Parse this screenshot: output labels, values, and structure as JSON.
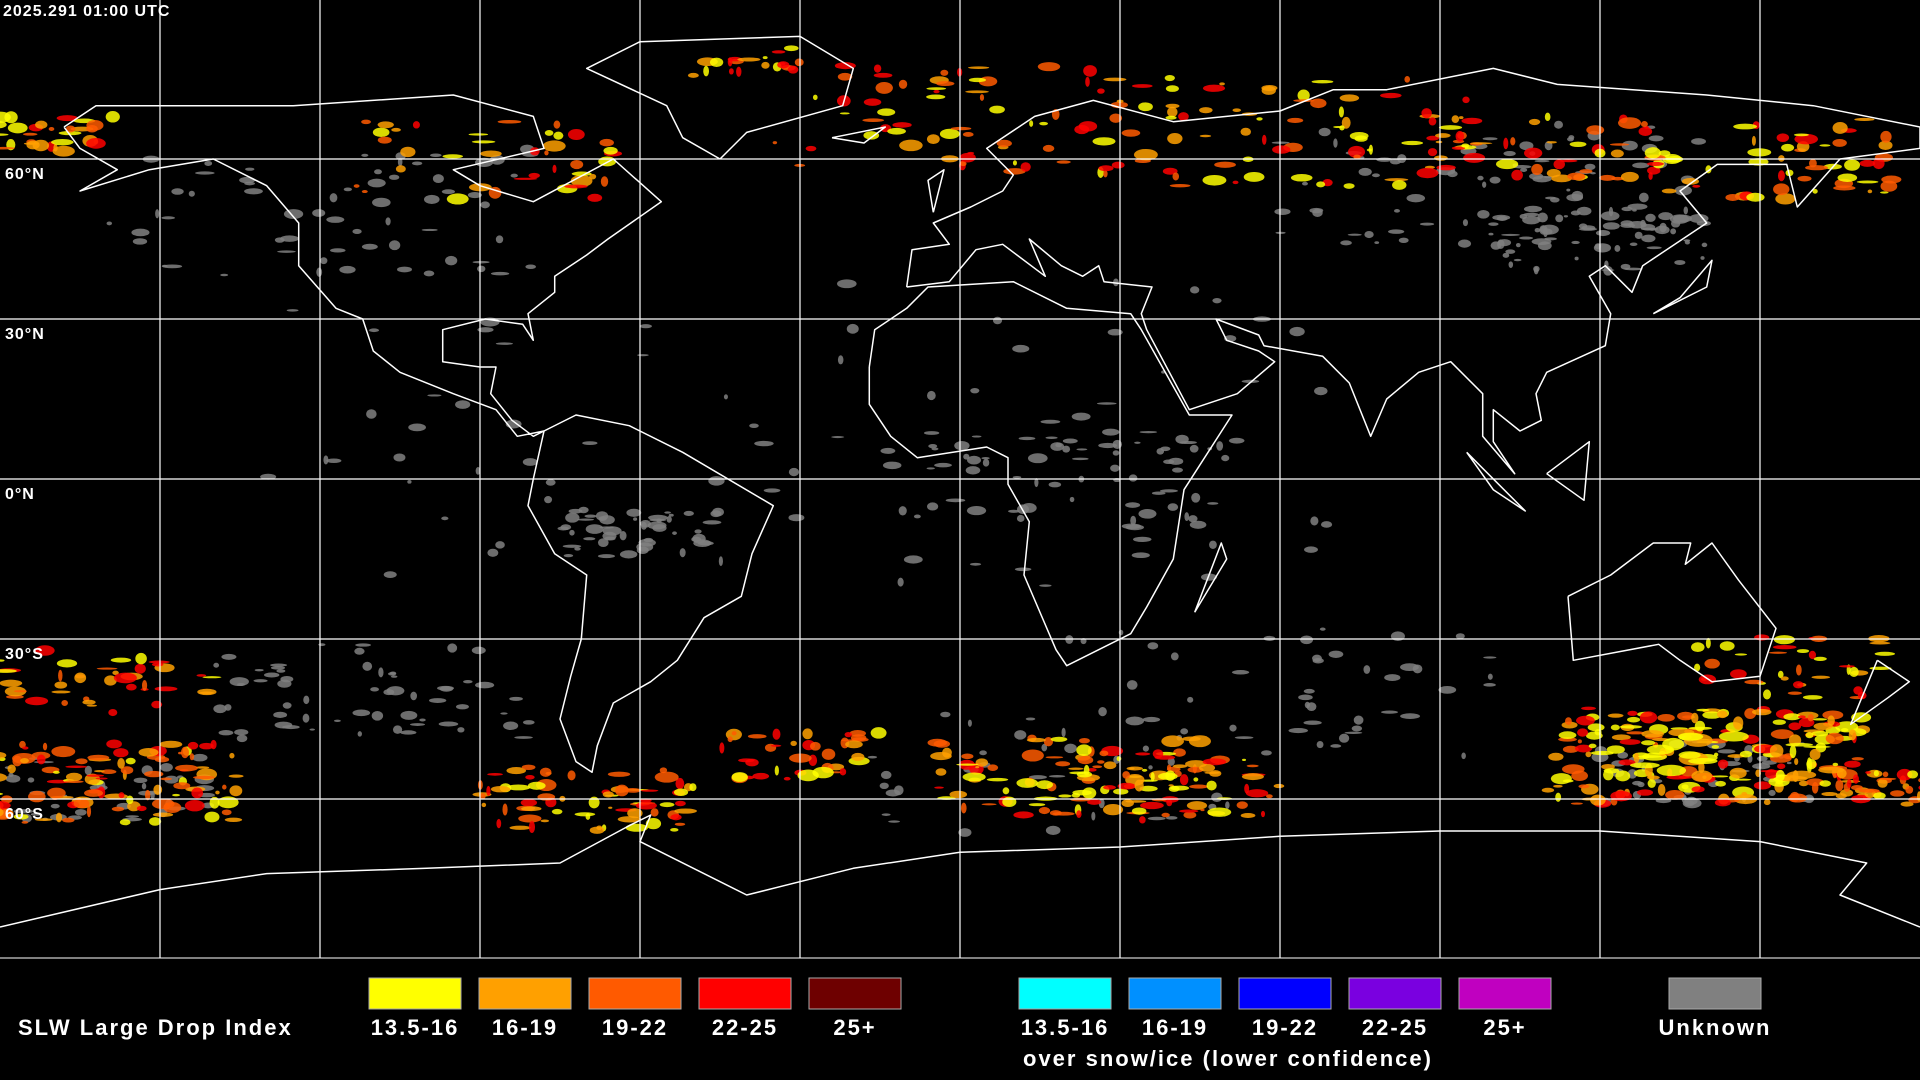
{
  "timestamp": "2025.291 01:00 UTC",
  "latitude_labels": [
    "60°N",
    "30°N",
    "0°N",
    "30°S",
    "60°S"
  ],
  "legend": {
    "title": "SLW Large Drop Index",
    "items": [
      {
        "label": "13.5-16",
        "color": "#ffff00"
      },
      {
        "label": "16-19",
        "color": "#ffa000"
      },
      {
        "label": "19-22",
        "color": "#ff5a00"
      },
      {
        "label": "22-25",
        "color": "#ff0000"
      },
      {
        "label": "25+",
        "color": "#6e0000"
      }
    ],
    "snow_ice_items": [
      {
        "label": "13.5-16",
        "color": "#00ffff"
      },
      {
        "label": "16-19",
        "color": "#0090ff"
      },
      {
        "label": "19-22",
        "color": "#0000ff"
      },
      {
        "label": "22-25",
        "color": "#7a00e0"
      },
      {
        "label": "25+",
        "color": "#c000c0"
      }
    ],
    "snow_ice_caption": "over snow/ice (lower confidence)",
    "unknown": {
      "label": "Unknown",
      "color": "#808080"
    }
  }
}
